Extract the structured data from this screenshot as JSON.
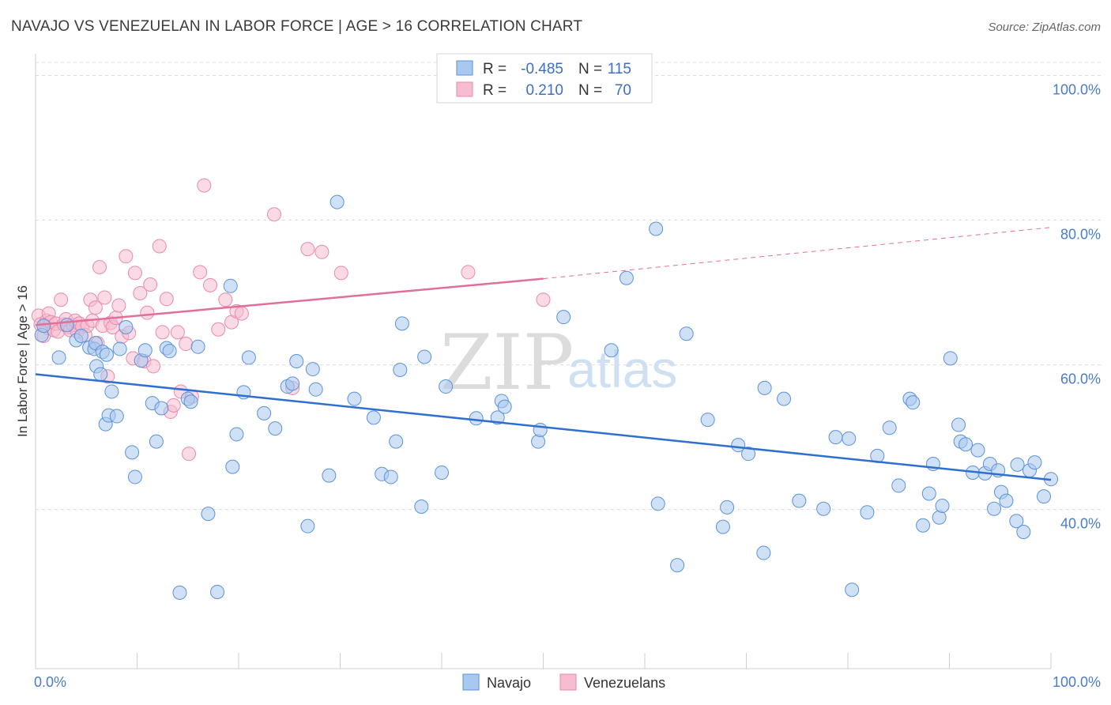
{
  "title": "NAVAJO VS VENEZUELAN IN LABOR FORCE | AGE > 16 CORRELATION CHART",
  "source": "Source: ZipAtlas.com",
  "watermark": {
    "zip": "ZIP",
    "atlas": "atlas"
  },
  "colors": {
    "navajo_fill": "#a9c8ef",
    "navajo_stroke": "#5b92d8",
    "navajo_line": "#2f6fd0",
    "venezuelan_fill": "#f6bcd0",
    "venezuelan_stroke": "#e98aaa",
    "venezuelan_line": "#e0709a",
    "grid": "#dcdcdc",
    "tick_text": "#4a7cc8"
  },
  "legend": {
    "rows": [
      {
        "r_label": "R =",
        "r_value": "-0.485",
        "n_label": "N =",
        "n_value": "115"
      },
      {
        "r_label": "R =",
        "r_value": "0.210",
        "n_label": "N =",
        "n_value": "70"
      }
    ]
  },
  "bottom_legend": [
    "Navajo",
    "Venezuelans"
  ],
  "chart_data": {
    "type": "scatter",
    "title": "NAVAJO VS VENEZUELAN IN LABOR FORCE | AGE > 16 CORRELATION CHART",
    "xlabel": "",
    "ylabel": "In Labor Force | Age > 16",
    "xlim": [
      0,
      100
    ],
    "ylim": [
      18,
      103
    ],
    "x_tick_labels": [
      "0.0%",
      "100.0%"
    ],
    "y_ticks": [
      40,
      60,
      80,
      100
    ],
    "y_tick_labels": [
      "40.0%",
      "60.0%",
      "80.0%",
      "100.0%"
    ],
    "grid": true,
    "legend_position": "top-center",
    "series": [
      {
        "name": "Navajo",
        "R": -0.485,
        "N": 115,
        "trend": {
          "x": [
            0,
            100
          ],
          "y": [
            58.7,
            44.1
          ]
        },
        "points": [
          [
            0.6,
            64.1
          ],
          [
            0.8,
            65.4
          ],
          [
            2.3,
            61.0
          ],
          [
            3.1,
            65.5
          ],
          [
            4.0,
            63.4
          ],
          [
            4.5,
            64.0
          ],
          [
            5.3,
            62.4
          ],
          [
            5.8,
            62.2
          ],
          [
            5.9,
            63.0
          ],
          [
            6.0,
            59.8
          ],
          [
            6.4,
            58.7
          ],
          [
            6.6,
            61.8
          ],
          [
            6.9,
            51.8
          ],
          [
            7.0,
            61.4
          ],
          [
            7.2,
            53.0
          ],
          [
            7.5,
            56.3
          ],
          [
            8.0,
            52.9
          ],
          [
            8.3,
            62.2
          ],
          [
            8.9,
            65.2
          ],
          [
            9.5,
            47.9
          ],
          [
            9.8,
            44.5
          ],
          [
            10.4,
            60.6
          ],
          [
            10.8,
            62.0
          ],
          [
            11.5,
            54.7
          ],
          [
            11.9,
            49.4
          ],
          [
            12.4,
            54.0
          ],
          [
            12.9,
            62.3
          ],
          [
            13.2,
            61.9
          ],
          [
            14.2,
            28.5
          ],
          [
            15.0,
            55.3
          ],
          [
            15.3,
            54.9
          ],
          [
            16.0,
            62.5
          ],
          [
            17.0,
            39.4
          ],
          [
            17.9,
            28.6
          ],
          [
            19.2,
            70.9
          ],
          [
            19.4,
            45.9
          ],
          [
            19.8,
            50.4
          ],
          [
            20.5,
            56.2
          ],
          [
            21.0,
            61.0
          ],
          [
            22.5,
            53.3
          ],
          [
            23.6,
            51.2
          ],
          [
            24.8,
            57.0
          ],
          [
            25.3,
            57.4
          ],
          [
            25.7,
            60.5
          ],
          [
            26.8,
            37.7
          ],
          [
            27.3,
            59.4
          ],
          [
            27.6,
            56.6
          ],
          [
            28.9,
            44.7
          ],
          [
            29.7,
            82.5
          ],
          [
            31.4,
            55.3
          ],
          [
            33.3,
            52.7
          ],
          [
            34.1,
            44.9
          ],
          [
            35.0,
            44.5
          ],
          [
            35.5,
            49.4
          ],
          [
            35.9,
            59.3
          ],
          [
            36.1,
            65.7
          ],
          [
            38.0,
            40.4
          ],
          [
            38.3,
            61.1
          ],
          [
            40.0,
            45.1
          ],
          [
            40.4,
            57.0
          ],
          [
            43.4,
            52.6
          ],
          [
            45.5,
            52.7
          ],
          [
            45.9,
            55.0
          ],
          [
            46.2,
            54.2
          ],
          [
            49.5,
            49.4
          ],
          [
            49.7,
            51.0
          ],
          [
            52.0,
            66.6
          ],
          [
            56.7,
            62.0
          ],
          [
            58.2,
            72.0
          ],
          [
            61.1,
            78.8
          ],
          [
            61.3,
            40.8
          ],
          [
            63.2,
            32.3
          ],
          [
            64.1,
            64.3
          ],
          [
            66.2,
            52.4
          ],
          [
            67.7,
            37.6
          ],
          [
            68.1,
            40.3
          ],
          [
            69.2,
            48.9
          ],
          [
            70.2,
            47.7
          ],
          [
            71.7,
            34.0
          ],
          [
            71.8,
            56.8
          ],
          [
            73.7,
            55.3
          ],
          [
            75.2,
            41.2
          ],
          [
            77.6,
            40.1
          ],
          [
            78.8,
            50.0
          ],
          [
            80.1,
            49.8
          ],
          [
            80.4,
            28.9
          ],
          [
            81.9,
            39.6
          ],
          [
            82.9,
            47.4
          ],
          [
            84.1,
            51.3
          ],
          [
            85.0,
            43.3
          ],
          [
            86.1,
            55.3
          ],
          [
            86.4,
            54.8
          ],
          [
            87.4,
            37.8
          ],
          [
            88.0,
            42.2
          ],
          [
            88.4,
            46.3
          ],
          [
            89.0,
            38.9
          ],
          [
            89.3,
            40.5
          ],
          [
            90.1,
            60.9
          ],
          [
            90.9,
            51.7
          ],
          [
            91.1,
            49.4
          ],
          [
            91.6,
            49.0
          ],
          [
            92.3,
            45.1
          ],
          [
            92.8,
            48.2
          ],
          [
            93.5,
            45.0
          ],
          [
            94.0,
            46.3
          ],
          [
            94.4,
            40.1
          ],
          [
            94.8,
            45.4
          ],
          [
            95.1,
            42.4
          ],
          [
            95.6,
            41.2
          ],
          [
            96.6,
            38.4
          ],
          [
            96.7,
            46.2
          ],
          [
            97.3,
            36.9
          ],
          [
            97.9,
            45.4
          ],
          [
            98.4,
            46.5
          ],
          [
            99.3,
            41.8
          ],
          [
            100.0,
            44.2
          ]
        ]
      },
      {
        "name": "Venezuelans",
        "R": 0.21,
        "N": 70,
        "trend": {
          "x": [
            0,
            50
          ],
          "y": [
            65.5,
            71.9
          ]
        },
        "trend_extension": {
          "x": [
            50,
            100
          ],
          "y": [
            71.9,
            79.0
          ]
        },
        "points": [
          [
            0.3,
            66.8
          ],
          [
            0.5,
            65.6
          ],
          [
            0.8,
            64.0
          ],
          [
            1.0,
            65.4
          ],
          [
            1.1,
            66.1
          ],
          [
            1.2,
            65.1
          ],
          [
            1.3,
            67.1
          ],
          [
            1.5,
            65.9
          ],
          [
            1.8,
            64.8
          ],
          [
            2.0,
            65.7
          ],
          [
            2.2,
            64.6
          ],
          [
            2.5,
            69.0
          ],
          [
            2.8,
            65.6
          ],
          [
            3.0,
            66.3
          ],
          [
            3.2,
            65.2
          ],
          [
            3.4,
            64.8
          ],
          [
            3.7,
            65.5
          ],
          [
            3.9,
            66.1
          ],
          [
            4.1,
            64.6
          ],
          [
            4.3,
            65.7
          ],
          [
            4.6,
            65.3
          ],
          [
            4.9,
            64.1
          ],
          [
            5.1,
            65.4
          ],
          [
            5.4,
            69.0
          ],
          [
            5.6,
            66.1
          ],
          [
            5.9,
            67.9
          ],
          [
            6.1,
            63.0
          ],
          [
            6.3,
            73.5
          ],
          [
            6.6,
            65.4
          ],
          [
            6.8,
            69.3
          ],
          [
            7.1,
            58.4
          ],
          [
            7.4,
            65.8
          ],
          [
            7.6,
            65.2
          ],
          [
            7.9,
            66.5
          ],
          [
            8.2,
            68.2
          ],
          [
            8.5,
            63.9
          ],
          [
            8.9,
            75.0
          ],
          [
            9.2,
            64.4
          ],
          [
            9.6,
            60.9
          ],
          [
            9.8,
            72.7
          ],
          [
            10.3,
            69.9
          ],
          [
            10.7,
            60.5
          ],
          [
            11.0,
            67.2
          ],
          [
            11.3,
            71.1
          ],
          [
            11.6,
            59.8
          ],
          [
            12.2,
            76.4
          ],
          [
            12.5,
            64.5
          ],
          [
            12.9,
            69.1
          ],
          [
            13.3,
            53.5
          ],
          [
            13.6,
            54.4
          ],
          [
            14.0,
            64.5
          ],
          [
            14.3,
            56.3
          ],
          [
            14.8,
            62.9
          ],
          [
            15.1,
            47.7
          ],
          [
            15.4,
            55.6
          ],
          [
            16.2,
            72.8
          ],
          [
            16.6,
            84.8
          ],
          [
            17.2,
            71.0
          ],
          [
            18.0,
            64.9
          ],
          [
            18.7,
            69.0
          ],
          [
            19.3,
            65.9
          ],
          [
            19.8,
            67.4
          ],
          [
            20.3,
            67.1
          ],
          [
            23.5,
            80.8
          ],
          [
            25.3,
            56.8
          ],
          [
            26.8,
            76.0
          ],
          [
            28.2,
            75.6
          ],
          [
            30.1,
            72.7
          ],
          [
            42.6,
            72.8
          ],
          [
            50.0,
            69.0
          ]
        ]
      }
    ]
  }
}
